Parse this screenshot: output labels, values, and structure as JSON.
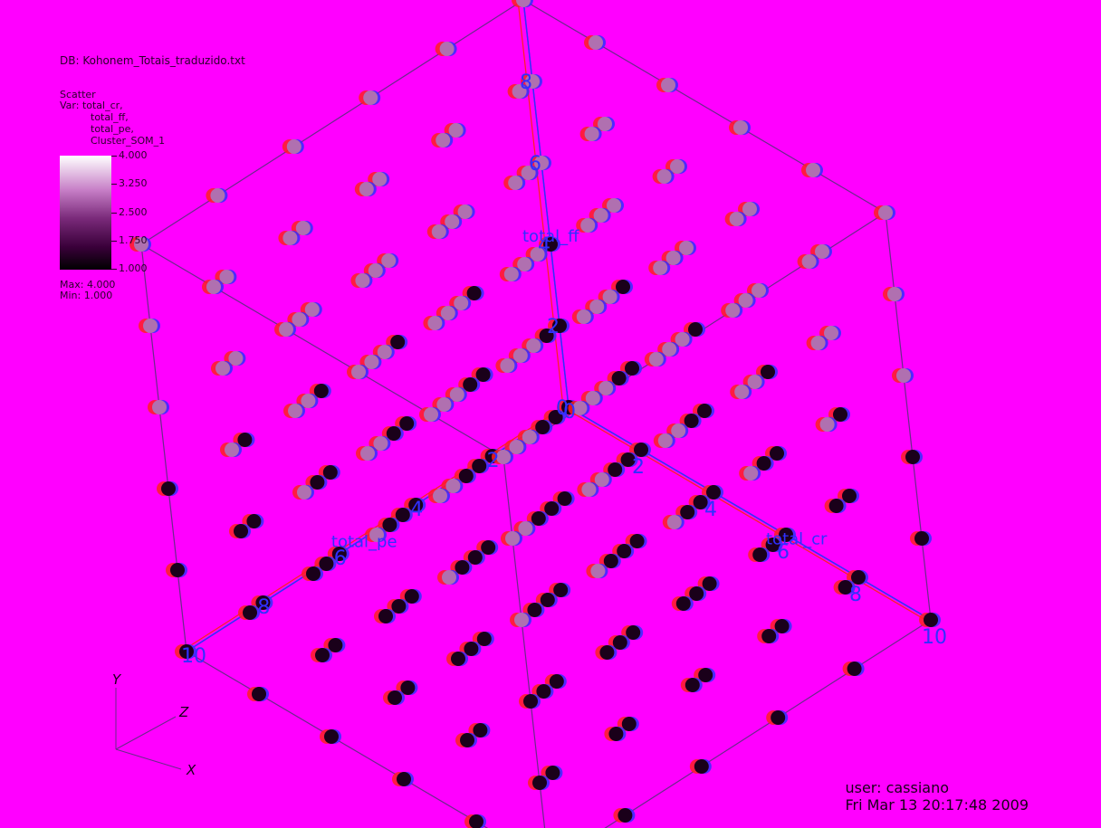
{
  "header": {
    "db": "DB: Kohonem_Totais_traduzido.txt"
  },
  "legend": {
    "plot_name": "Scatter",
    "var_lines": [
      "Var: total_cr,",
      "total_ff,",
      "total_pe,",
      "Cluster_SOM_1"
    ],
    "ticks": [
      "4.000",
      "3.250",
      "2.500",
      "1.750",
      "1.000"
    ],
    "max": "Max: 4.000",
    "min": "Min: 1.000"
  },
  "footer": {
    "user": "user: cassiano",
    "timestamp": "Fri Mar 13 20:17:48 2009"
  },
  "colors": {
    "background": "#ff00ff",
    "point_dark": "#1a001a",
    "point_light": "#b070b0",
    "stereo_red": "#ff2020",
    "stereo_blue": "#3030ff"
  },
  "chart_data": {
    "type": "scatter",
    "projection": "3d",
    "axes": {
      "x": {
        "label": "total_cr",
        "range": [
          0,
          10
        ],
        "ticks": [
          "2",
          "4",
          "6",
          "8",
          "10"
        ]
      },
      "y": {
        "label": "total_ff",
        "range": [
          0,
          10
        ],
        "ticks": [
          "0",
          "2",
          "4",
          "6",
          "8"
        ]
      },
      "z": {
        "label": "total_pe",
        "range": [
          0,
          10
        ],
        "ticks": [
          "0",
          "2",
          "4",
          "6",
          "8",
          "10"
        ]
      }
    },
    "axis_labels_drawn": [
      "total_ff",
      "total_pe",
      "total_cr"
    ],
    "triad": {
      "x": "X",
      "y": "Y",
      "z": "Z"
    },
    "color_var": "Cluster_SOM_1",
    "color_range": [
      1,
      4
    ],
    "points_description": "regular lattice grid of points colored by Cluster_SOM_1",
    "grid": {
      "nx": 6,
      "ny": 6,
      "nz": 6
    }
  }
}
